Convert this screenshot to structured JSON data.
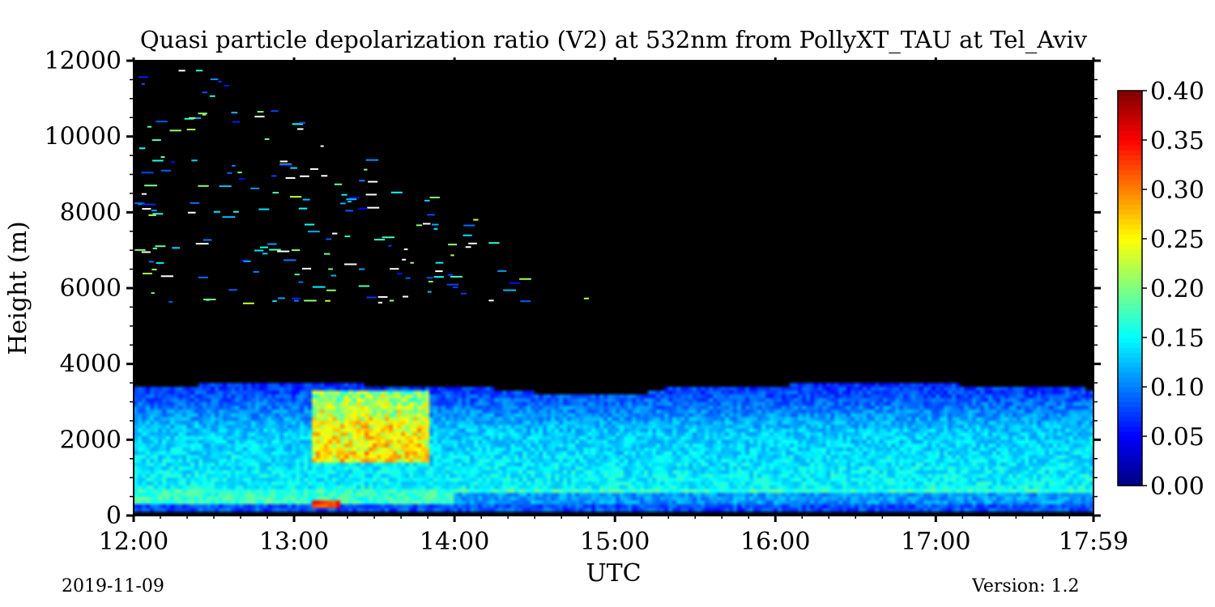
{
  "chart_data": {
    "type": "heatmap",
    "title": "Quasi particle depolarization ratio (V2) at 532nm from PollyXT_TAU at Tel_Aviv",
    "xlabel": "UTC",
    "ylabel": "Height (m)",
    "x_tick_labels": [
      "12:00",
      "13:00",
      "14:00",
      "15:00",
      "16:00",
      "17:00",
      "17:59"
    ],
    "x_tick_values_hours": [
      12,
      13,
      14,
      15,
      16,
      17,
      17.983
    ],
    "xlim_hours": [
      12,
      17.983
    ],
    "y_tick_labels": [
      "0",
      "2000",
      "4000",
      "6000",
      "8000",
      "10000",
      "12000"
    ],
    "y_tick_values": [
      0,
      2000,
      4000,
      6000,
      8000,
      10000,
      12000
    ],
    "ylim": [
      0,
      12000
    ],
    "colorbar": {
      "colormap": "jet",
      "range": [
        0.0,
        0.4
      ],
      "tick_labels": [
        "0.00",
        "0.05",
        "0.10",
        "0.15",
        "0.20",
        "0.25",
        "0.30",
        "0.35",
        "0.40"
      ],
      "tick_values": [
        0.0,
        0.05,
        0.1,
        0.15,
        0.2,
        0.25,
        0.3,
        0.35,
        0.4
      ]
    },
    "no_data_color": "#000000",
    "layer_top_height_m": 3400,
    "layer_bottom_height_m": 150,
    "features": [
      {
        "region": "surface layer",
        "height_m": [
          150,
          700
        ],
        "typical_value": 0.17
      },
      {
        "region": "mid layer",
        "height_m": [
          700,
          2200
        ],
        "typical_value": 0.15
      },
      {
        "region": "upper layer",
        "height_m": [
          2200,
          3400
        ],
        "typical_value": 0.09
      },
      {
        "region": "dust plume",
        "time_hours": [
          13.1,
          13.8
        ],
        "height_m": [
          1500,
          3300
        ],
        "typical_value": 0.28
      },
      {
        "region": "hotspot near ground",
        "time_hours": [
          13.1,
          13.3
        ],
        "height_m": [
          200,
          450
        ],
        "typical_value": 0.33
      }
    ]
  },
  "footer": {
    "date": "2019-11-09",
    "version": "Version: 1.2"
  }
}
